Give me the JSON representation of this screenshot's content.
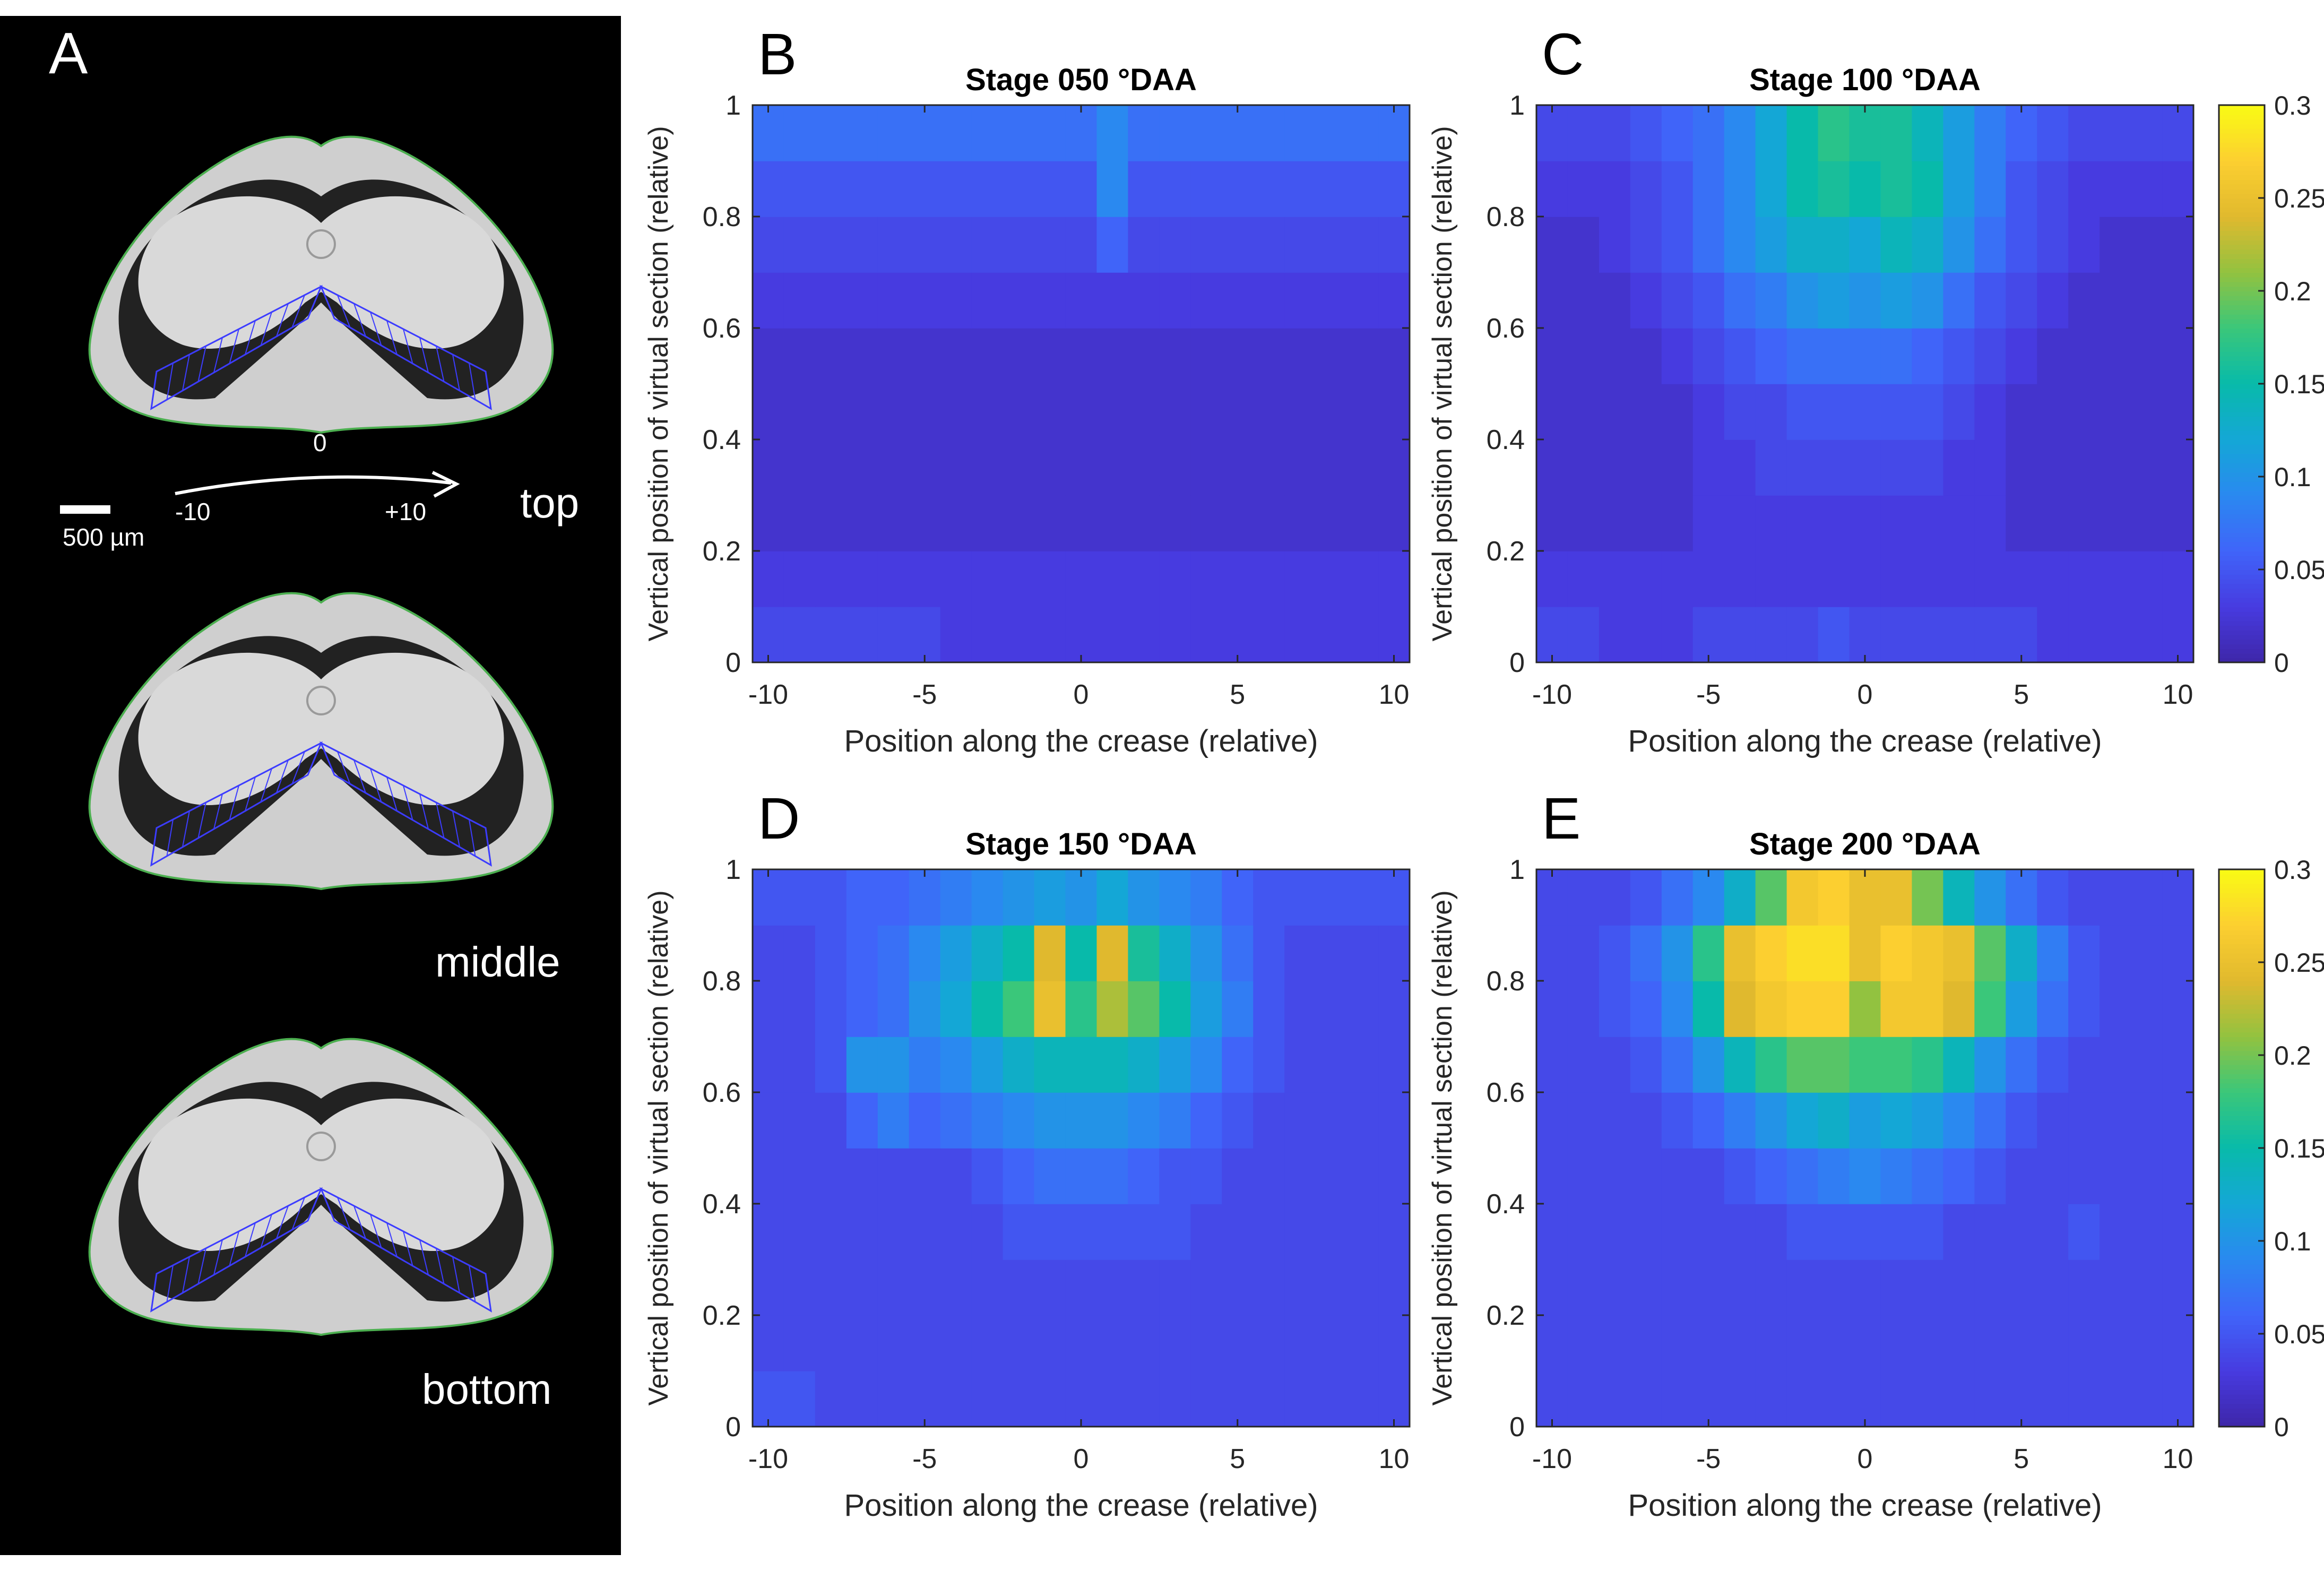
{
  "panel_a": {
    "letter": "A",
    "scalebar_label": "500 µm",
    "axis_minus": "-10",
    "axis_zero": "0",
    "axis_plus": "+10",
    "sections": [
      {
        "label": "top"
      },
      {
        "label": "middle"
      },
      {
        "label": "bottom"
      }
    ],
    "colors": {
      "background": "#000000",
      "kernel": "#cfcfcf",
      "outline": "#4caf50",
      "grid": "#3c3cff"
    }
  },
  "chart_data": [
    {
      "type": "heatmap",
      "panel": "B",
      "title": "Stage 050 °DAA",
      "xlabel": "Position along the crease (relative)",
      "ylabel": "Vertical position of virtual section (relative)",
      "xlim": [
        -10.5,
        10.5
      ],
      "ylim": [
        0,
        1
      ],
      "xticks": [
        -10,
        -5,
        0,
        5,
        10
      ],
      "yticks": [
        0,
        0.2,
        0.4,
        0.6,
        0.8,
        1
      ],
      "colorbar": false,
      "x": [
        -10,
        -9,
        -8,
        -7,
        -6,
        -5,
        -4,
        -3,
        -2,
        -1,
        0,
        1,
        2,
        3,
        4,
        5,
        6,
        7,
        8,
        9,
        10
      ],
      "y": [
        0.05,
        0.15,
        0.25,
        0.35,
        0.45,
        0.55,
        0.65,
        0.75,
        0.85,
        0.95
      ],
      "z": [
        [
          0.04,
          0.04,
          0.04,
          0.04,
          0.04,
          0.04,
          0.03,
          0.03,
          0.03,
          0.03,
          0.03,
          0.03,
          0.03,
          0.03,
          0.03,
          0.03,
          0.03,
          0.03,
          0.03,
          0.03,
          0.03
        ],
        [
          0.03,
          0.03,
          0.03,
          0.03,
          0.03,
          0.03,
          0.03,
          0.03,
          0.03,
          0.03,
          0.03,
          0.03,
          0.03,
          0.03,
          0.03,
          0.03,
          0.03,
          0.03,
          0.03,
          0.03,
          0.03
        ],
        [
          0.02,
          0.02,
          0.02,
          0.02,
          0.02,
          0.02,
          0.02,
          0.02,
          0.02,
          0.02,
          0.02,
          0.02,
          0.02,
          0.02,
          0.02,
          0.02,
          0.02,
          0.02,
          0.02,
          0.02,
          0.02
        ],
        [
          0.02,
          0.02,
          0.02,
          0.02,
          0.02,
          0.02,
          0.02,
          0.02,
          0.02,
          0.02,
          0.02,
          0.02,
          0.02,
          0.02,
          0.02,
          0.02,
          0.02,
          0.02,
          0.02,
          0.02,
          0.02
        ],
        [
          0.02,
          0.02,
          0.02,
          0.02,
          0.02,
          0.02,
          0.02,
          0.02,
          0.02,
          0.02,
          0.02,
          0.02,
          0.02,
          0.02,
          0.02,
          0.02,
          0.02,
          0.02,
          0.02,
          0.02,
          0.02
        ],
        [
          0.02,
          0.02,
          0.02,
          0.02,
          0.02,
          0.02,
          0.02,
          0.02,
          0.02,
          0.02,
          0.02,
          0.02,
          0.02,
          0.02,
          0.02,
          0.02,
          0.02,
          0.02,
          0.02,
          0.02,
          0.02
        ],
        [
          0.03,
          0.03,
          0.03,
          0.03,
          0.03,
          0.03,
          0.03,
          0.03,
          0.03,
          0.03,
          0.03,
          0.03,
          0.03,
          0.03,
          0.03,
          0.03,
          0.03,
          0.03,
          0.03,
          0.03,
          0.03
        ],
        [
          0.04,
          0.04,
          0.04,
          0.04,
          0.04,
          0.04,
          0.04,
          0.04,
          0.04,
          0.04,
          0.04,
          0.06,
          0.04,
          0.04,
          0.04,
          0.04,
          0.04,
          0.04,
          0.04,
          0.04,
          0.04
        ],
        [
          0.05,
          0.05,
          0.05,
          0.05,
          0.05,
          0.05,
          0.05,
          0.05,
          0.05,
          0.05,
          0.05,
          0.09,
          0.05,
          0.05,
          0.05,
          0.05,
          0.05,
          0.05,
          0.05,
          0.05,
          0.05
        ],
        [
          0.07,
          0.07,
          0.07,
          0.07,
          0.07,
          0.07,
          0.07,
          0.07,
          0.07,
          0.07,
          0.07,
          0.09,
          0.07,
          0.07,
          0.07,
          0.07,
          0.07,
          0.07,
          0.07,
          0.07,
          0.07
        ]
      ]
    },
    {
      "type": "heatmap",
      "panel": "C",
      "title": "Stage 100 °DAA",
      "xlabel": "Position along the crease (relative)",
      "ylabel": "Vertical position of virtual section (relative)",
      "xlim": [
        -10.5,
        10.5
      ],
      "ylim": [
        0,
        1
      ],
      "xticks": [
        -10,
        -5,
        0,
        5,
        10
      ],
      "yticks": [
        0,
        0.2,
        0.4,
        0.6,
        0.8,
        1
      ],
      "colorbar": true,
      "clim": [
        0,
        0.3
      ],
      "colorbar_ticks": [
        "0",
        "0.05",
        "0.1",
        "0.15",
        "0.2",
        "0.25",
        "0.3"
      ],
      "x": [
        -10,
        -9,
        -8,
        -7,
        -6,
        -5,
        -4,
        -3,
        -2,
        -1,
        0,
        1,
        2,
        3,
        4,
        5,
        6,
        7,
        8,
        9,
        10
      ],
      "y": [
        0.05,
        0.15,
        0.25,
        0.35,
        0.45,
        0.55,
        0.65,
        0.75,
        0.85,
        0.95
      ],
      "z": [
        [
          0.04,
          0.04,
          0.03,
          0.03,
          0.03,
          0.04,
          0.04,
          0.04,
          0.04,
          0.05,
          0.04,
          0.04,
          0.04,
          0.04,
          0.04,
          0.04,
          0.03,
          0.03,
          0.03,
          0.03,
          0.03
        ],
        [
          0.03,
          0.03,
          0.03,
          0.03,
          0.03,
          0.03,
          0.03,
          0.03,
          0.03,
          0.03,
          0.03,
          0.03,
          0.03,
          0.03,
          0.03,
          0.03,
          0.03,
          0.03,
          0.03,
          0.03,
          0.03
        ],
        [
          0.02,
          0.02,
          0.02,
          0.02,
          0.02,
          0.03,
          0.03,
          0.03,
          0.03,
          0.03,
          0.03,
          0.03,
          0.03,
          0.03,
          0.03,
          0.02,
          0.02,
          0.02,
          0.02,
          0.02,
          0.02
        ],
        [
          0.02,
          0.02,
          0.02,
          0.02,
          0.02,
          0.03,
          0.03,
          0.04,
          0.04,
          0.04,
          0.04,
          0.04,
          0.04,
          0.03,
          0.03,
          0.02,
          0.02,
          0.02,
          0.02,
          0.02,
          0.02
        ],
        [
          0.02,
          0.02,
          0.02,
          0.02,
          0.02,
          0.03,
          0.04,
          0.04,
          0.05,
          0.05,
          0.05,
          0.05,
          0.05,
          0.04,
          0.03,
          0.02,
          0.02,
          0.02,
          0.02,
          0.02,
          0.02
        ],
        [
          0.02,
          0.02,
          0.02,
          0.02,
          0.03,
          0.04,
          0.05,
          0.06,
          0.07,
          0.07,
          0.07,
          0.07,
          0.06,
          0.05,
          0.04,
          0.03,
          0.02,
          0.02,
          0.02,
          0.02,
          0.02
        ],
        [
          0.02,
          0.02,
          0.02,
          0.03,
          0.04,
          0.05,
          0.07,
          0.08,
          0.1,
          0.11,
          0.1,
          0.11,
          0.1,
          0.07,
          0.05,
          0.04,
          0.03,
          0.02,
          0.02,
          0.02,
          0.02
        ],
        [
          0.02,
          0.02,
          0.03,
          0.04,
          0.05,
          0.07,
          0.09,
          0.11,
          0.13,
          0.13,
          0.12,
          0.14,
          0.13,
          0.1,
          0.07,
          0.05,
          0.04,
          0.03,
          0.02,
          0.02,
          0.02
        ],
        [
          0.03,
          0.03,
          0.03,
          0.04,
          0.05,
          0.07,
          0.09,
          0.12,
          0.15,
          0.16,
          0.15,
          0.16,
          0.15,
          0.11,
          0.08,
          0.05,
          0.04,
          0.03,
          0.03,
          0.03,
          0.03
        ],
        [
          0.04,
          0.04,
          0.04,
          0.05,
          0.06,
          0.07,
          0.09,
          0.12,
          0.15,
          0.17,
          0.16,
          0.16,
          0.14,
          0.11,
          0.08,
          0.06,
          0.05,
          0.04,
          0.04,
          0.04,
          0.04
        ]
      ]
    },
    {
      "type": "heatmap",
      "panel": "D",
      "title": "Stage 150 °DAA",
      "xlabel": "Position along the crease (relative)",
      "ylabel": "Vertical position of virtual section (relative)",
      "xlim": [
        -10.5,
        10.5
      ],
      "ylim": [
        0,
        1
      ],
      "xticks": [
        -10,
        -5,
        0,
        5,
        10
      ],
      "yticks": [
        0,
        0.2,
        0.4,
        0.6,
        0.8,
        1
      ],
      "colorbar": false,
      "x": [
        -10,
        -9,
        -8,
        -7,
        -6,
        -5,
        -4,
        -3,
        -2,
        -1,
        0,
        1,
        2,
        3,
        4,
        5,
        6,
        7,
        8,
        9,
        10
      ],
      "y": [
        0.05,
        0.15,
        0.25,
        0.35,
        0.45,
        0.55,
        0.65,
        0.75,
        0.85,
        0.95
      ],
      "z": [
        [
          0.05,
          0.05,
          0.04,
          0.04,
          0.04,
          0.04,
          0.04,
          0.04,
          0.04,
          0.04,
          0.04,
          0.04,
          0.04,
          0.04,
          0.04,
          0.04,
          0.04,
          0.04,
          0.04,
          0.04,
          0.04
        ],
        [
          0.04,
          0.04,
          0.04,
          0.04,
          0.04,
          0.04,
          0.04,
          0.04,
          0.04,
          0.04,
          0.04,
          0.04,
          0.04,
          0.04,
          0.04,
          0.04,
          0.04,
          0.04,
          0.04,
          0.04,
          0.04
        ],
        [
          0.04,
          0.04,
          0.04,
          0.04,
          0.04,
          0.04,
          0.04,
          0.04,
          0.04,
          0.04,
          0.04,
          0.04,
          0.04,
          0.04,
          0.04,
          0.04,
          0.04,
          0.04,
          0.04,
          0.04,
          0.04
        ],
        [
          0.04,
          0.04,
          0.04,
          0.04,
          0.04,
          0.04,
          0.04,
          0.04,
          0.05,
          0.05,
          0.05,
          0.05,
          0.05,
          0.05,
          0.04,
          0.04,
          0.04,
          0.04,
          0.04,
          0.04,
          0.04
        ],
        [
          0.04,
          0.04,
          0.04,
          0.04,
          0.04,
          0.04,
          0.04,
          0.05,
          0.06,
          0.07,
          0.07,
          0.07,
          0.06,
          0.05,
          0.05,
          0.04,
          0.04,
          0.04,
          0.04,
          0.04,
          0.04
        ],
        [
          0.04,
          0.04,
          0.04,
          0.06,
          0.08,
          0.06,
          0.07,
          0.08,
          0.09,
          0.1,
          0.1,
          0.1,
          0.09,
          0.08,
          0.06,
          0.05,
          0.04,
          0.04,
          0.04,
          0.04,
          0.04
        ],
        [
          0.04,
          0.04,
          0.05,
          0.1,
          0.1,
          0.08,
          0.09,
          0.11,
          0.13,
          0.14,
          0.14,
          0.14,
          0.13,
          0.11,
          0.09,
          0.06,
          0.05,
          0.04,
          0.04,
          0.04,
          0.04
        ],
        [
          0.04,
          0.04,
          0.05,
          0.06,
          0.07,
          0.1,
          0.12,
          0.15,
          0.18,
          0.25,
          0.17,
          0.22,
          0.19,
          0.15,
          0.11,
          0.08,
          0.05,
          0.04,
          0.04,
          0.04,
          0.04
        ],
        [
          0.04,
          0.04,
          0.05,
          0.06,
          0.07,
          0.09,
          0.11,
          0.13,
          0.15,
          0.24,
          0.15,
          0.24,
          0.16,
          0.13,
          0.1,
          0.07,
          0.05,
          0.04,
          0.04,
          0.04,
          0.04
        ],
        [
          0.05,
          0.05,
          0.05,
          0.06,
          0.06,
          0.07,
          0.08,
          0.09,
          0.1,
          0.11,
          0.1,
          0.12,
          0.1,
          0.09,
          0.08,
          0.06,
          0.05,
          0.05,
          0.05,
          0.05,
          0.05
        ]
      ]
    },
    {
      "type": "heatmap",
      "panel": "E",
      "title": "Stage 200 °DAA",
      "xlabel": "Position along the crease (relative)",
      "ylabel": "Vertical position of virtual section (relative)",
      "xlim": [
        -10.5,
        10.5
      ],
      "ylim": [
        0,
        1
      ],
      "xticks": [
        -10,
        -5,
        0,
        5,
        10
      ],
      "yticks": [
        0,
        0.2,
        0.4,
        0.6,
        0.8,
        1
      ],
      "colorbar": true,
      "clim": [
        0,
        0.3
      ],
      "colorbar_ticks": [
        "0",
        "0.05",
        "0.1",
        "0.15",
        "0.2",
        "0.25",
        "0.3"
      ],
      "x": [
        -10,
        -9,
        -8,
        -7,
        -6,
        -5,
        -4,
        -3,
        -2,
        -1,
        0,
        1,
        2,
        3,
        4,
        5,
        6,
        7,
        8,
        9,
        10
      ],
      "y": [
        0.05,
        0.15,
        0.25,
        0.35,
        0.45,
        0.55,
        0.65,
        0.75,
        0.85,
        0.95
      ],
      "z": [
        [
          0.04,
          0.04,
          0.04,
          0.04,
          0.04,
          0.04,
          0.04,
          0.04,
          0.04,
          0.04,
          0.04,
          0.04,
          0.04,
          0.04,
          0.04,
          0.04,
          0.04,
          0.04,
          0.04,
          0.04,
          0.04
        ],
        [
          0.04,
          0.04,
          0.04,
          0.04,
          0.04,
          0.04,
          0.04,
          0.04,
          0.04,
          0.04,
          0.04,
          0.04,
          0.04,
          0.04,
          0.04,
          0.04,
          0.04,
          0.04,
          0.04,
          0.04,
          0.04
        ],
        [
          0.04,
          0.04,
          0.04,
          0.04,
          0.04,
          0.04,
          0.04,
          0.04,
          0.04,
          0.04,
          0.04,
          0.04,
          0.04,
          0.04,
          0.04,
          0.04,
          0.04,
          0.04,
          0.04,
          0.04,
          0.04
        ],
        [
          0.04,
          0.04,
          0.04,
          0.04,
          0.04,
          0.04,
          0.04,
          0.04,
          0.05,
          0.05,
          0.05,
          0.05,
          0.05,
          0.04,
          0.04,
          0.04,
          0.04,
          0.05,
          0.04,
          0.04,
          0.04
        ],
        [
          0.04,
          0.04,
          0.04,
          0.04,
          0.04,
          0.04,
          0.05,
          0.06,
          0.07,
          0.08,
          0.09,
          0.08,
          0.07,
          0.06,
          0.05,
          0.04,
          0.04,
          0.04,
          0.04,
          0.04,
          0.04
        ],
        [
          0.04,
          0.04,
          0.04,
          0.04,
          0.05,
          0.06,
          0.08,
          0.1,
          0.12,
          0.13,
          0.11,
          0.12,
          0.11,
          0.09,
          0.07,
          0.05,
          0.04,
          0.04,
          0.04,
          0.04,
          0.04
        ],
        [
          0.04,
          0.04,
          0.04,
          0.05,
          0.07,
          0.1,
          0.14,
          0.17,
          0.19,
          0.19,
          0.18,
          0.18,
          0.17,
          0.14,
          0.1,
          0.07,
          0.05,
          0.04,
          0.04,
          0.04,
          0.04
        ],
        [
          0.04,
          0.04,
          0.05,
          0.06,
          0.09,
          0.15,
          0.24,
          0.26,
          0.27,
          0.27,
          0.21,
          0.26,
          0.26,
          0.24,
          0.18,
          0.11,
          0.07,
          0.05,
          0.04,
          0.04,
          0.04
        ],
        [
          0.04,
          0.04,
          0.05,
          0.07,
          0.1,
          0.17,
          0.25,
          0.27,
          0.28,
          0.28,
          0.25,
          0.27,
          0.26,
          0.25,
          0.19,
          0.13,
          0.08,
          0.05,
          0.04,
          0.04,
          0.04
        ],
        [
          0.04,
          0.04,
          0.04,
          0.05,
          0.07,
          0.09,
          0.13,
          0.19,
          0.26,
          0.27,
          0.25,
          0.25,
          0.2,
          0.14,
          0.1,
          0.07,
          0.05,
          0.04,
          0.04,
          0.04,
          0.04
        ]
      ]
    }
  ]
}
